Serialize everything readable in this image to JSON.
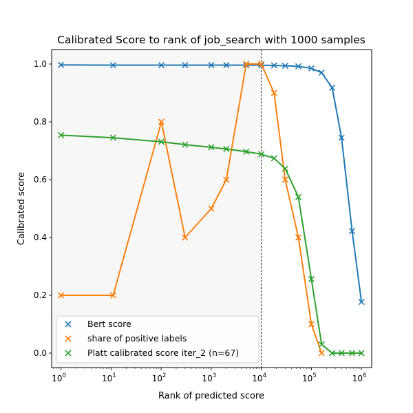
{
  "chart_data": {
    "type": "line",
    "title": "Calibrated Score to rank of job_search with 1000 samples",
    "xlabel": "Rank of predicted score",
    "ylabel": "Calibrated score",
    "xscale": "log",
    "xlim": [
      0.65,
      1600000
    ],
    "ylim": [
      -0.05,
      1.05
    ],
    "grid": false,
    "legend_position": "lower-left",
    "x_ticks": [
      {
        "value": 1,
        "base": "10",
        "exp": "0"
      },
      {
        "value": 10,
        "base": "10",
        "exp": "1"
      },
      {
        "value": 100,
        "base": "10",
        "exp": "2"
      },
      {
        "value": 1000,
        "base": "10",
        "exp": "3"
      },
      {
        "value": 10000,
        "base": "10",
        "exp": "4"
      },
      {
        "value": 100000,
        "base": "10",
        "exp": "5"
      },
      {
        "value": 1000000,
        "base": "10",
        "exp": "6"
      }
    ],
    "y_ticks": [
      {
        "value": 0.0,
        "label": "0.0"
      },
      {
        "value": 0.2,
        "label": "0.2"
      },
      {
        "value": 0.4,
        "label": "0.4"
      },
      {
        "value": 0.6,
        "label": "0.6"
      },
      {
        "value": 0.8,
        "label": "0.8"
      },
      {
        "value": 1.0,
        "label": "1.0"
      }
    ],
    "shaded_region": {
      "x_from": 0.65,
      "x_to": 10000,
      "color": "#f7f7f7"
    },
    "vertical_line": {
      "x": 10000,
      "style": "dashed",
      "color": "#000000"
    },
    "series": [
      {
        "name": "Bert score",
        "color": "#1f77b4",
        "marker": "x",
        "x": [
          1,
          11,
          101,
          301,
          1001,
          2001,
          5001,
          10001,
          18000,
          30000,
          55000,
          100000,
          160000,
          260000,
          400000,
          650000,
          1000000
        ],
        "y": [
          0.997,
          0.996,
          0.996,
          0.996,
          0.996,
          0.996,
          0.996,
          0.996,
          0.995,
          0.994,
          0.992,
          0.985,
          0.97,
          0.918,
          0.745,
          0.422,
          0.177
        ]
      },
      {
        "name": "share of positive labels",
        "color": "#ff7f0e",
        "marker": "x",
        "x": [
          1,
          11,
          101,
          301,
          1001,
          2001,
          5001,
          10001,
          18000,
          30000,
          55000,
          100000,
          160000
        ],
        "y": [
          0.2,
          0.2,
          0.8,
          0.4,
          0.5,
          0.6,
          1.0,
          1.0,
          0.9,
          0.6,
          0.4,
          0.1,
          0.0
        ]
      },
      {
        "name": "Platt calibrated score iter_2 (n=67)",
        "color": "#2ca02c",
        "marker": "x",
        "x": [
          1,
          11,
          101,
          301,
          1001,
          2001,
          5001,
          10001,
          18000,
          30000,
          55000,
          100000,
          160000,
          260000,
          400000,
          650000,
          1000000
        ],
        "y": [
          0.754,
          0.745,
          0.731,
          0.721,
          0.712,
          0.706,
          0.697,
          0.688,
          0.674,
          0.638,
          0.54,
          0.256,
          0.03,
          0.0,
          0.0,
          0.0,
          0.0
        ]
      }
    ]
  }
}
